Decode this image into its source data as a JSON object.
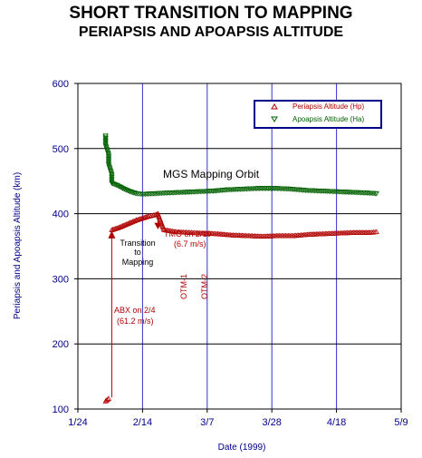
{
  "chart_data": {
    "type": "scatter",
    "title": "SHORT TRANSITION TO MAPPING",
    "subtitle": "PERIAPSIS AND APOAPSIS ALTITUDE",
    "xlabel": "Date (1999)",
    "ylabel": "Periapsis and Apoapsis Altitude (km)",
    "x_ticks": [
      "1/24",
      "2/14",
      "3/7",
      "3/28",
      "4/18",
      "5/9"
    ],
    "y_ticks": [
      "100",
      "200",
      "300",
      "400",
      "500",
      "600"
    ],
    "xlim": [
      "1999-01-24",
      "1999-05-09"
    ],
    "ylim": [
      100,
      600
    ],
    "grid": true,
    "legend_position": "top-right",
    "series": [
      {
        "name": "Periapsis Altitude (Hp)",
        "marker": "triangle-up",
        "color": "#b00000",
        "points": [
          [
            "1999-02-02",
            112
          ],
          [
            "1999-02-03",
            116
          ],
          [
            "1999-02-04",
            375
          ],
          [
            "1999-02-06",
            378
          ],
          [
            "1999-02-08",
            382
          ],
          [
            "1999-02-10",
            386
          ],
          [
            "1999-02-12",
            390
          ],
          [
            "1999-02-14",
            393
          ],
          [
            "1999-02-16",
            396
          ],
          [
            "1999-02-18",
            398
          ],
          [
            "1999-02-19",
            400
          ],
          [
            "1999-02-21",
            375
          ],
          [
            "1999-02-25",
            372
          ],
          [
            "1999-03-01",
            371
          ],
          [
            "1999-03-05",
            370
          ],
          [
            "1999-03-10",
            369
          ],
          [
            "1999-03-15",
            367
          ],
          [
            "1999-03-20",
            366
          ],
          [
            "1999-03-25",
            365
          ],
          [
            "1999-03-30",
            366
          ],
          [
            "1999-04-04",
            366
          ],
          [
            "1999-04-09",
            368
          ],
          [
            "1999-04-14",
            369
          ],
          [
            "1999-04-19",
            370
          ],
          [
            "1999-04-24",
            371
          ],
          [
            "1999-04-29",
            371
          ],
          [
            "1999-05-01",
            372
          ]
        ]
      },
      {
        "name": "Apoapsis Altitude (Ha)",
        "marker": "triangle-down",
        "color": "#006000",
        "points": [
          [
            "1999-02-02",
            520
          ],
          [
            "1999-02-02",
            505
          ],
          [
            "1999-02-03",
            490
          ],
          [
            "1999-02-03",
            475
          ],
          [
            "1999-02-04",
            460
          ],
          [
            "1999-02-04",
            447
          ],
          [
            "1999-02-06",
            443
          ],
          [
            "1999-02-08",
            438
          ],
          [
            "1999-02-10",
            434
          ],
          [
            "1999-02-12",
            431
          ],
          [
            "1999-02-14",
            430
          ],
          [
            "1999-02-18",
            431
          ],
          [
            "1999-02-22",
            432
          ],
          [
            "1999-02-27",
            433
          ],
          [
            "1999-03-04",
            434
          ],
          [
            "1999-03-09",
            435
          ],
          [
            "1999-03-14",
            437
          ],
          [
            "1999-03-19",
            438
          ],
          [
            "1999-03-24",
            439
          ],
          [
            "1999-03-29",
            439
          ],
          [
            "1999-04-03",
            438
          ],
          [
            "1999-04-08",
            436
          ],
          [
            "1999-04-13",
            435
          ],
          [
            "1999-04-18",
            434
          ],
          [
            "1999-04-23",
            433
          ],
          [
            "1999-04-28",
            432
          ],
          [
            "1999-05-01",
            431
          ]
        ]
      }
    ],
    "annotations": {
      "mapping_orbit": "MGS Mapping Orbit",
      "tmo": "TMO on 2/19",
      "tmo_dv": "(6.7 m/s)",
      "transition": [
        "Transition",
        "to",
        "Mapping"
      ],
      "otm1": "OTM-1",
      "otm2": "OTM-2",
      "abx": "ABX on 2/4",
      "abx_dv": "(61.2 m/s)"
    }
  },
  "colors": {
    "axis": "#00008b",
    "grid_x": "#3333cc",
    "grid_y": "#000000",
    "annotation_red": "#b00000",
    "legend_border": "#00008b"
  }
}
